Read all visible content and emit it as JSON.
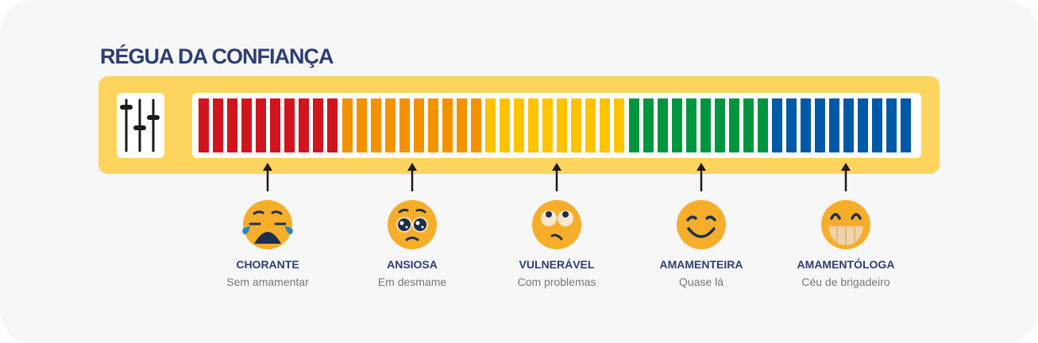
{
  "title": "RÉGUA DA CONFIANÇA",
  "scale": {
    "segments": [
      {
        "color": "#d0151f",
        "count": 10
      },
      {
        "color": "#f39200",
        "count": 10
      },
      {
        "color": "#fdc300",
        "count": 10
      },
      {
        "color": "#00963f",
        "count": 10
      },
      {
        "color": "#0059a6",
        "count": 10
      }
    ]
  },
  "levels": [
    {
      "name": "CHORANTE",
      "subtitle": "Sem amamentar",
      "icon": "crying-face-icon"
    },
    {
      "name": "ANSIOSA",
      "subtitle": "Em desmame",
      "icon": "pleading-face-icon"
    },
    {
      "name": "VULNERÁVEL",
      "subtitle": "Com problemas",
      "icon": "eye-roll-face-icon"
    },
    {
      "name": "AMAMENTEIRA",
      "subtitle": "Quase lá",
      "icon": "smiling-face-icon"
    },
    {
      "name": "AMAMENTÓLOGA",
      "subtitle": "Céu de brigadeiro",
      "icon": "grinning-face-icon"
    }
  ]
}
